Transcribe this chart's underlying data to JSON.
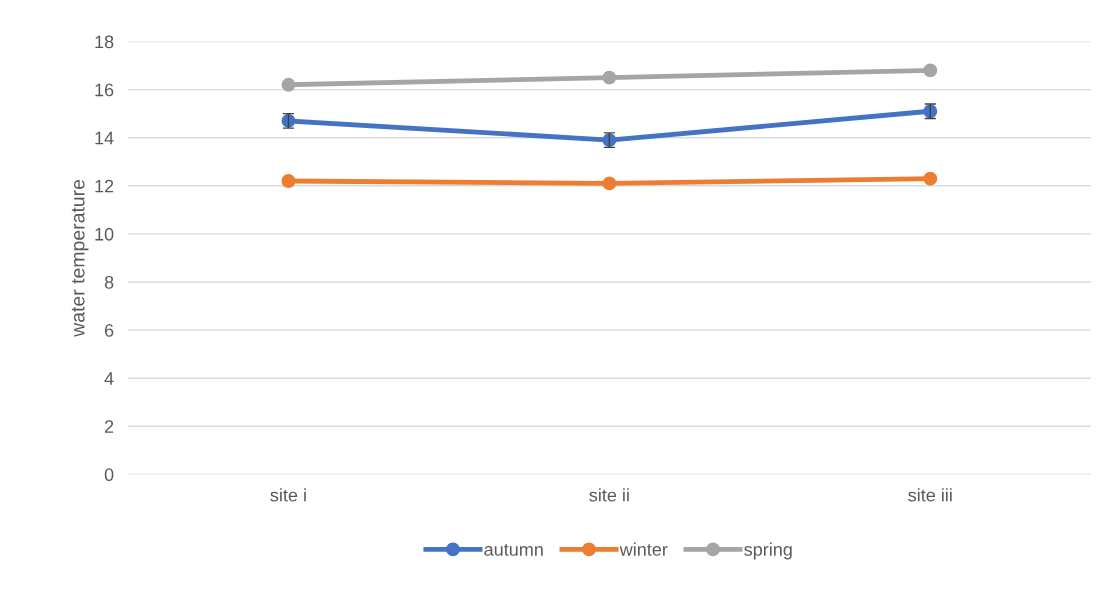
{
  "chart_data": {
    "type": "line",
    "ylabel": "water temperature",
    "categories": [
      "site i",
      "site ii",
      "site iii"
    ],
    "series": [
      {
        "name": "autumn",
        "color": "#4472c4",
        "values": [
          14.7,
          13.9,
          15.1
        ],
        "errors": [
          0.3,
          0.3,
          0.3
        ]
      },
      {
        "name": "winter",
        "color": "#ed7d31",
        "values": [
          12.2,
          12.1,
          12.3
        ]
      },
      {
        "name": "spring",
        "color": "#a5a5a5",
        "values": [
          16.2,
          16.5,
          16.8
        ]
      }
    ],
    "ylim": [
      0,
      18
    ],
    "yticks": [
      0,
      2,
      4,
      6,
      8,
      10,
      12,
      14,
      16,
      18
    ],
    "grid": "y",
    "legend": "bottom",
    "marker": "circle",
    "line_style": "solid"
  }
}
